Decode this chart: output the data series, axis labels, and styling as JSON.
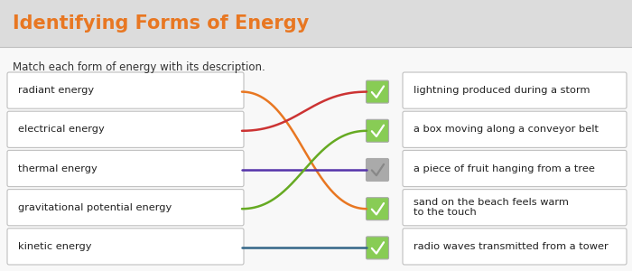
{
  "title": "Identifying Forms of Energy",
  "subtitle": "Match each form of energy with its description.",
  "title_color": "#E87722",
  "title_fontsize": 15,
  "subtitle_fontsize": 8.5,
  "bg_color": "#f0f0f0",
  "header_bg": "#dcdcdc",
  "body_bg": "#f8f8f8",
  "left_items": [
    "radiant energy",
    "electrical energy",
    "thermal energy",
    "gravitational potential energy",
    "kinetic energy"
  ],
  "right_items": [
    "lightning produced during a storm",
    "a box moving along a conveyor belt",
    "a piece of fruit hanging from a tree",
    "sand on the beach feels warm\nto the touch",
    "radio waves transmitted from a tower"
  ],
  "connections": [
    {
      "from": 0,
      "to": 3,
      "color": "#E87722"
    },
    {
      "from": 1,
      "to": 0,
      "color": "#CC3333"
    },
    {
      "from": 2,
      "to": 2,
      "color": "#5533AA"
    },
    {
      "from": 3,
      "to": 1,
      "color": "#66AA22"
    },
    {
      "from": 4,
      "to": 4,
      "color": "#336688"
    }
  ],
  "checkbox_colors": [
    "#88CC55",
    "#88CC55",
    "#AAAAAA",
    "#88CC55",
    "#88CC55"
  ],
  "checkbox_check_colors": [
    "white",
    "white",
    "#888888",
    "white",
    "white"
  ]
}
